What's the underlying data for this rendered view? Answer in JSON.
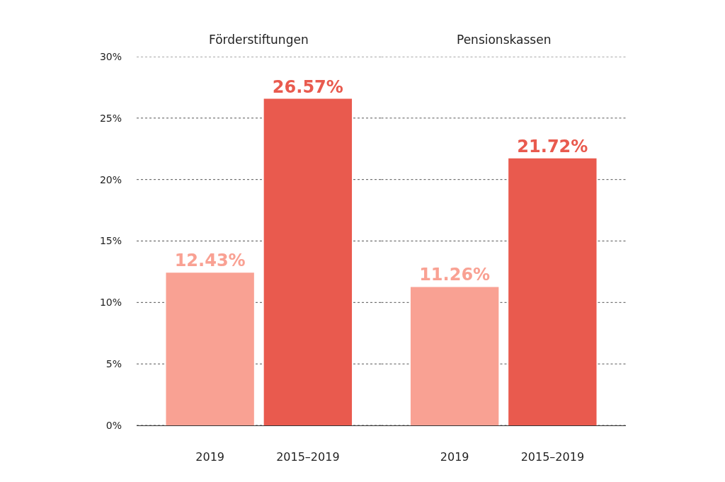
{
  "chart_data": [
    {
      "type": "bar",
      "title": "Förderstiftungen",
      "categories": [
        "2019",
        "2015–2019"
      ],
      "values": [
        12.43,
        26.57
      ],
      "colors": [
        "#f9a193",
        "#e95a4e"
      ],
      "value_labels": [
        "12.43%",
        "26.57%"
      ],
      "ylim": [
        0,
        30
      ],
      "yticks": [
        {
          "value": 0,
          "label": "0%"
        },
        {
          "value": 5,
          "label": "5%"
        },
        {
          "value": 10,
          "label": "10%"
        },
        {
          "value": 15,
          "label": "15%"
        },
        {
          "value": 20,
          "label": "20%"
        },
        {
          "value": 25,
          "label": "25%"
        },
        {
          "value": 30,
          "label": "30%"
        }
      ],
      "grid": "y"
    },
    {
      "type": "bar",
      "title": "Pensionskassen",
      "categories": [
        "2019",
        "2015–2019"
      ],
      "values": [
        11.26,
        21.72
      ],
      "colors": [
        "#f9a193",
        "#e95a4e"
      ],
      "value_labels": [
        "11.26%",
        "21.72%"
      ],
      "ylim": [
        0,
        30
      ],
      "yticks": [
        {
          "value": 0,
          "label": null
        },
        {
          "value": 5,
          "label": null
        },
        {
          "value": 10,
          "label": null
        },
        {
          "value": 15,
          "label": null
        },
        {
          "value": 20,
          "label": null
        },
        {
          "value": 25,
          "label": null
        },
        {
          "value": 30,
          "label": null
        }
      ],
      "grid": "y",
      "tick_labels": "x"
    }
  ]
}
